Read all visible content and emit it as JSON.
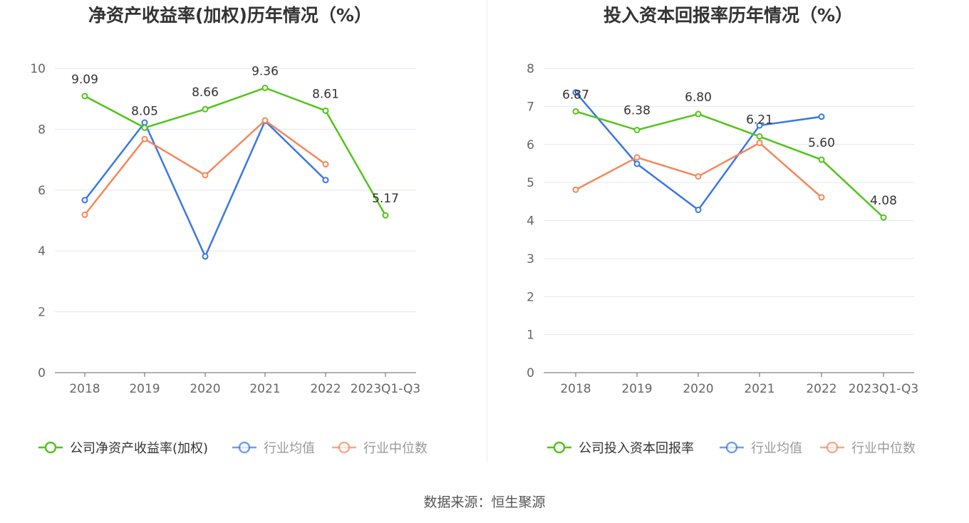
{
  "source_label": "数据来源：恒生聚源",
  "chart_data": [
    {
      "type": "line",
      "title": "净资产收益率(加权)历年情况（%）",
      "categories": [
        "2018",
        "2019",
        "2020",
        "2021",
        "2022",
        "2023Q1-Q3"
      ],
      "ylim": [
        0,
        10
      ],
      "yticks": [
        0,
        2,
        4,
        6,
        8,
        10
      ],
      "grid": true,
      "legend_position": "bottom",
      "series": [
        {
          "name": "公司净资产收益率(加权)",
          "color": "#52c41a",
          "values": [
            9.09,
            8.05,
            8.66,
            9.36,
            8.61,
            5.17
          ],
          "labels": [
            "9.09",
            "8.05",
            "8.66",
            "9.36",
            "8.61",
            "5.17"
          ]
        },
        {
          "name": "行业均值",
          "color": "#3a77e6",
          "values": [
            5.67,
            8.22,
            3.82,
            8.27,
            6.33,
            null
          ]
        },
        {
          "name": "行业中位数",
          "color": "#f5875a",
          "values": [
            5.19,
            7.68,
            6.49,
            8.29,
            6.85,
            null
          ]
        }
      ]
    },
    {
      "type": "line",
      "title": "投入资本回报率历年情况（%）",
      "categories": [
        "2018",
        "2019",
        "2020",
        "2021",
        "2022",
        "2023Q1-Q3"
      ],
      "ylim": [
        0,
        8
      ],
      "yticks": [
        0,
        1,
        2,
        3,
        4,
        5,
        6,
        7,
        8
      ],
      "grid": true,
      "legend_position": "bottom",
      "series": [
        {
          "name": "公司投入资本回报率",
          "color": "#52c41a",
          "values": [
            6.87,
            6.38,
            6.8,
            6.21,
            5.6,
            4.08
          ],
          "labels": [
            "6.87",
            "6.38",
            "6.80",
            "6.21",
            "5.60",
            "4.08"
          ]
        },
        {
          "name": "行业均值",
          "color": "#3a77e6",
          "values": [
            7.37,
            5.49,
            4.28,
            6.5,
            6.73,
            null
          ]
        },
        {
          "name": "行业中位数",
          "color": "#f5875a",
          "values": [
            4.81,
            5.66,
            5.16,
            6.04,
            4.61,
            null
          ]
        }
      ]
    }
  ]
}
